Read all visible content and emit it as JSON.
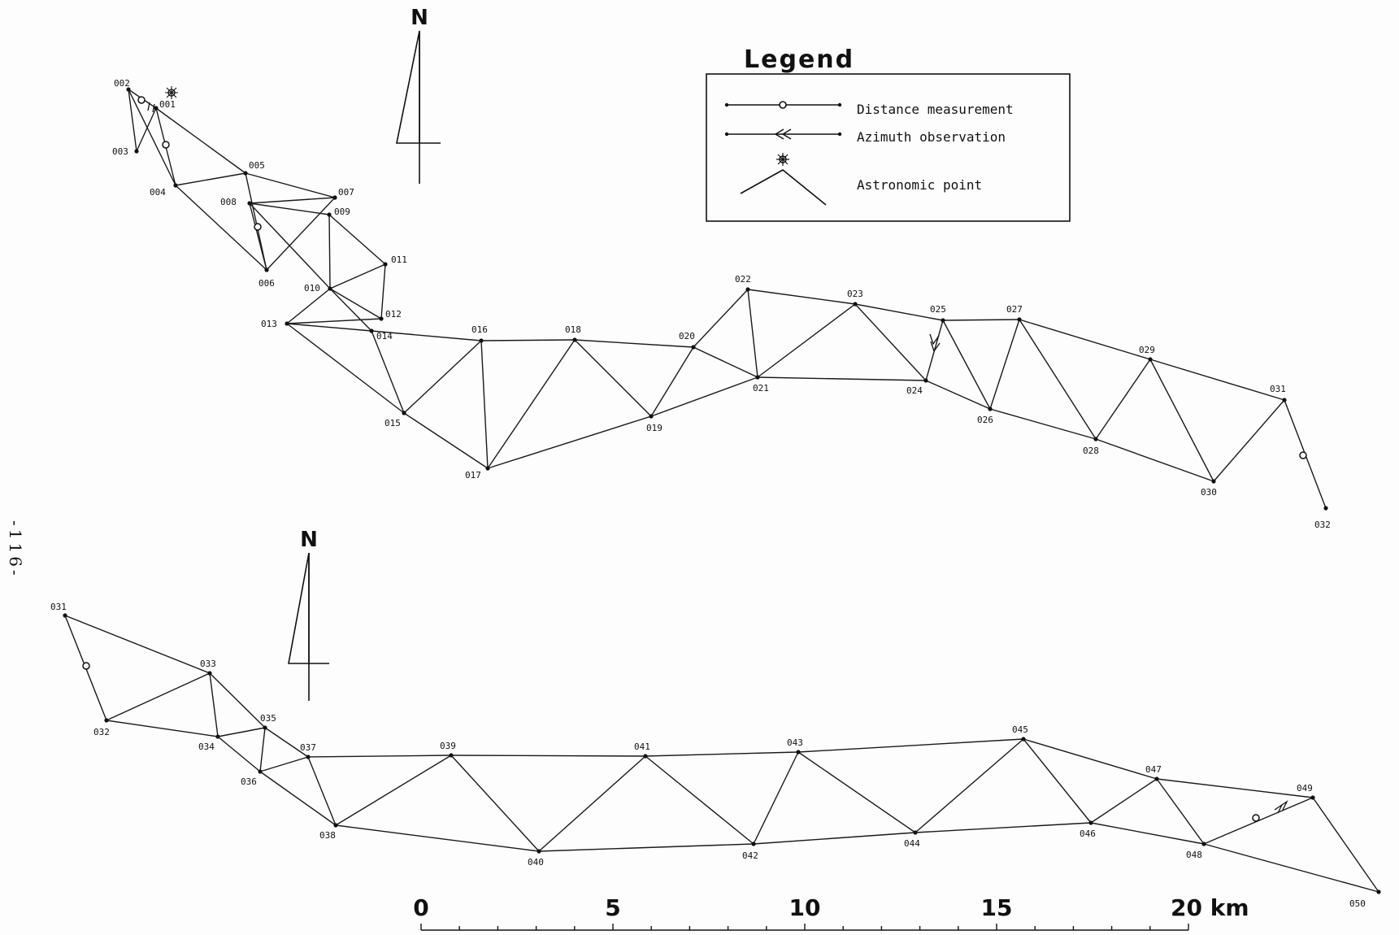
{
  "page_number": "-116-",
  "north_label": "N",
  "legend": {
    "title": "Legend",
    "items": [
      {
        "label": "Distance measurement",
        "icon": "distance-measurement-icon"
      },
      {
        "label": "Azimuth observation",
        "icon": "azimuth-observation-icon"
      },
      {
        "label": "Astronomic point",
        "icon": "astronomic-point-icon"
      }
    ]
  },
  "scale_bar": {
    "labels": [
      "0",
      "5",
      "10",
      "15",
      "20 km"
    ]
  },
  "upper_network": {
    "stations": [
      "001",
      "002",
      "003",
      "004",
      "005",
      "006",
      "007",
      "008",
      "009",
      "010",
      "011",
      "012",
      "013",
      "014",
      "015",
      "016",
      "017",
      "018",
      "019",
      "020",
      "021",
      "022",
      "023",
      "024",
      "025",
      "026",
      "027",
      "028",
      "029",
      "030",
      "031",
      "032"
    ],
    "links": [
      [
        "002",
        "001"
      ],
      [
        "002",
        "003"
      ],
      [
        "002",
        "004"
      ],
      [
        "001",
        "003"
      ],
      [
        "001",
        "004"
      ],
      [
        "001",
        "005"
      ],
      [
        "004",
        "005"
      ],
      [
        "004",
        "006"
      ],
      [
        "005",
        "006"
      ],
      [
        "005",
        "007"
      ],
      [
        "008",
        "006"
      ],
      [
        "008",
        "007"
      ],
      [
        "008",
        "009"
      ],
      [
        "008",
        "010"
      ],
      [
        "007",
        "006"
      ],
      [
        "009",
        "010"
      ],
      [
        "009",
        "011"
      ],
      [
        "010",
        "011"
      ],
      [
        "010",
        "012"
      ],
      [
        "010",
        "014"
      ],
      [
        "010",
        "013"
      ],
      [
        "011",
        "012"
      ],
      [
        "013",
        "012"
      ],
      [
        "013",
        "014"
      ],
      [
        "013",
        "015"
      ],
      [
        "014",
        "015"
      ],
      [
        "014",
        "016"
      ],
      [
        "015",
        "016"
      ],
      [
        "015",
        "017"
      ],
      [
        "016",
        "017"
      ],
      [
        "016",
        "018"
      ],
      [
        "017",
        "018"
      ],
      [
        "017",
        "019"
      ],
      [
        "018",
        "019"
      ],
      [
        "018",
        "020"
      ],
      [
        "019",
        "020"
      ],
      [
        "019",
        "021"
      ],
      [
        "020",
        "021"
      ],
      [
        "020",
        "022"
      ],
      [
        "022",
        "021"
      ],
      [
        "022",
        "023"
      ],
      [
        "021",
        "023"
      ],
      [
        "021",
        "024"
      ],
      [
        "023",
        "024"
      ],
      [
        "023",
        "025"
      ],
      [
        "024",
        "025"
      ],
      [
        "024",
        "026"
      ],
      [
        "025",
        "026"
      ],
      [
        "025",
        "027"
      ],
      [
        "026",
        "027"
      ],
      [
        "026",
        "028"
      ],
      [
        "027",
        "028"
      ],
      [
        "027",
        "029"
      ],
      [
        "028",
        "029"
      ],
      [
        "028",
        "030"
      ],
      [
        "029",
        "030"
      ],
      [
        "029",
        "031"
      ],
      [
        "030",
        "031"
      ],
      [
        "031",
        "032"
      ]
    ]
  },
  "lower_network": {
    "stations": [
      "031",
      "032",
      "033",
      "034",
      "035",
      "036",
      "037",
      "038",
      "039",
      "040",
      "041",
      "042",
      "043",
      "044",
      "045",
      "046",
      "047",
      "048",
      "049",
      "050"
    ],
    "links": [
      [
        "031",
        "032"
      ],
      [
        "031",
        "033"
      ],
      [
        "032",
        "033"
      ],
      [
        "032",
        "034"
      ],
      [
        "033",
        "034"
      ],
      [
        "033",
        "035"
      ],
      [
        "034",
        "035"
      ],
      [
        "034",
        "036"
      ],
      [
        "035",
        "036"
      ],
      [
        "035",
        "037"
      ],
      [
        "036",
        "037"
      ],
      [
        "036",
        "038"
      ],
      [
        "037",
        "038"
      ],
      [
        "037",
        "039"
      ],
      [
        "038",
        "039"
      ],
      [
        "038",
        "040"
      ],
      [
        "039",
        "040"
      ],
      [
        "040",
        "041"
      ],
      [
        "040",
        "042"
      ],
      [
        "041",
        "042"
      ],
      [
        "039",
        "041"
      ],
      [
        "041",
        "043"
      ],
      [
        "042",
        "043"
      ],
      [
        "042",
        "044"
      ],
      [
        "043",
        "044"
      ],
      [
        "043",
        "045"
      ],
      [
        "044",
        "045"
      ],
      [
        "044",
        "046"
      ],
      [
        "045",
        "046"
      ],
      [
        "045",
        "047"
      ],
      [
        "046",
        "047"
      ],
      [
        "046",
        "048"
      ],
      [
        "047",
        "048"
      ],
      [
        "047",
        "049"
      ],
      [
        "048",
        "049"
      ],
      [
        "048",
        "050"
      ],
      [
        "049",
        "050"
      ]
    ]
  }
}
